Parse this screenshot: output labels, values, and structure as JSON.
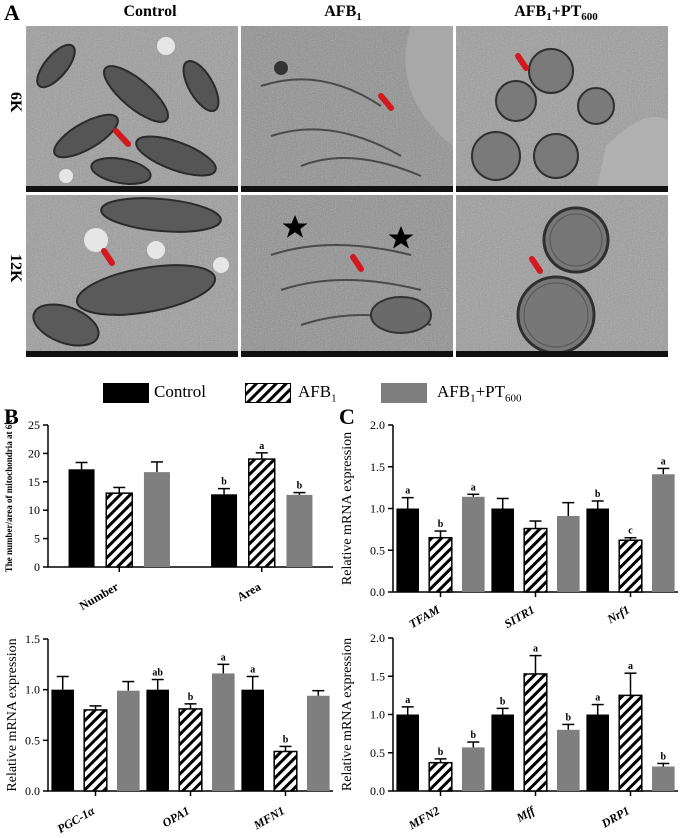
{
  "panel_labels": {
    "a": "A",
    "b": "B",
    "c": "C"
  },
  "micrograph": {
    "columns": [
      "Control",
      "AFB",
      "AFB"
    ],
    "col_subscripts": [
      "",
      "1",
      "1"
    ],
    "col_suffix": [
      "",
      "",
      "+PT"
    ],
    "col_suffix_sub": [
      "",
      "",
      "600"
    ],
    "rows": [
      "6K",
      "12K"
    ],
    "arrow_color": "#d3181e",
    "star_color": "#000000"
  },
  "legend": {
    "items": [
      {
        "label": "Control",
        "sub": "",
        "suffix": "",
        "suffix_sub": "",
        "fill": "solid-black"
      },
      {
        "label": "AFB",
        "sub": "1",
        "suffix": "",
        "suffix_sub": "",
        "fill": "hatched"
      },
      {
        "label": "AFB",
        "sub": "1",
        "suffix": "+PT",
        "suffix_sub": "600",
        "fill": "solid-gray"
      }
    ]
  },
  "colors": {
    "control": "#000000",
    "afb": "#ffffff",
    "pt": "#7f7f7f"
  },
  "chart_data": [
    {
      "id": "B-top",
      "type": "bar",
      "ylabel": "The number/area of mitochondria at 6k",
      "ylim": [
        0,
        25
      ],
      "yticks": [
        "0",
        "5",
        "10",
        "15",
        "20",
        "25"
      ],
      "categories": [
        "Number",
        "Area"
      ],
      "series": [
        {
          "name": "Control",
          "values": [
            17.2,
            12.8
          ],
          "errors": [
            1.2,
            1.0
          ],
          "letters": [
            "",
            "b"
          ]
        },
        {
          "name": "AFB1",
          "values": [
            13.0,
            19.0
          ],
          "errors": [
            1.0,
            1.1
          ],
          "letters": [
            "",
            "a"
          ]
        },
        {
          "name": "AFB1+PT600",
          "values": [
            16.7,
            12.7
          ],
          "errors": [
            1.8,
            0.4
          ],
          "letters": [
            "",
            "b"
          ]
        }
      ]
    },
    {
      "id": "B-bottom",
      "type": "bar",
      "ylabel": "Relative mRNA expression",
      "ylim": [
        0,
        1.5
      ],
      "yticks": [
        "0.0",
        "0.5",
        "1.0",
        "1.5"
      ],
      "categories": [
        "PGC-1α",
        "OPA1",
        "MFN1"
      ],
      "series": [
        {
          "name": "Control",
          "values": [
            1.0,
            1.0,
            1.0
          ],
          "errors": [
            0.13,
            0.1,
            0.13
          ],
          "letters": [
            "",
            "ab",
            "a"
          ]
        },
        {
          "name": "AFB1",
          "values": [
            0.8,
            0.81,
            0.39
          ],
          "errors": [
            0.04,
            0.05,
            0.05
          ],
          "letters": [
            "",
            "b",
            "b"
          ]
        },
        {
          "name": "AFB1+PT600",
          "values": [
            0.99,
            1.16,
            0.94
          ],
          "errors": [
            0.09,
            0.09,
            0.05
          ],
          "letters": [
            "",
            "a",
            ""
          ]
        }
      ]
    },
    {
      "id": "C-top",
      "type": "bar",
      "ylabel": "Relative mRNA expression",
      "ylim": [
        0,
        2.0
      ],
      "yticks": [
        "0.0",
        "0.5",
        "1.0",
        "1.5",
        "2.0"
      ],
      "categories": [
        "TFAM",
        "SITR1",
        "Nrf1"
      ],
      "series": [
        {
          "name": "Control",
          "values": [
            1.0,
            1.0,
            1.0
          ],
          "errors": [
            0.13,
            0.12,
            0.09
          ],
          "letters": [
            "a",
            "",
            "b"
          ]
        },
        {
          "name": "AFB1",
          "values": [
            0.65,
            0.76,
            0.62
          ],
          "errors": [
            0.08,
            0.09,
            0.03
          ],
          "letters": [
            "b",
            "",
            "c"
          ]
        },
        {
          "name": "AFB1+PT600",
          "values": [
            1.14,
            0.91,
            1.41
          ],
          "errors": [
            0.03,
            0.16,
            0.07
          ],
          "letters": [
            "a",
            "",
            "a"
          ]
        }
      ]
    },
    {
      "id": "C-bottom",
      "type": "bar",
      "ylabel": "Relative mRNA expression",
      "ylim": [
        0,
        2.0
      ],
      "yticks": [
        "0.0",
        "0.5",
        "1.0",
        "1.5",
        "2.0"
      ],
      "categories": [
        "MFN2",
        "Mff",
        "DRP1"
      ],
      "series": [
        {
          "name": "Control",
          "values": [
            1.0,
            1.0,
            1.0
          ],
          "errors": [
            0.1,
            0.08,
            0.13
          ],
          "letters": [
            "a",
            "b",
            "a"
          ]
        },
        {
          "name": "AFB1",
          "values": [
            0.37,
            1.53,
            1.25
          ],
          "errors": [
            0.05,
            0.24,
            0.29
          ],
          "letters": [
            "b",
            "a",
            "a"
          ]
        },
        {
          "name": "AFB1+PT600",
          "values": [
            0.57,
            0.8,
            0.32
          ],
          "errors": [
            0.07,
            0.07,
            0.04
          ],
          "letters": [
            "b",
            "b",
            "b"
          ]
        }
      ]
    }
  ]
}
